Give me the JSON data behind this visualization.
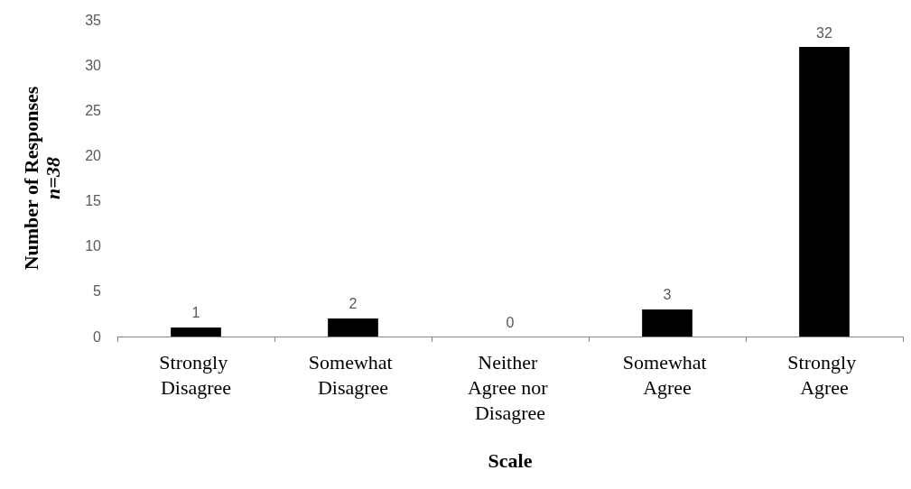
{
  "chart_data": {
    "type": "bar",
    "xlabel": "Scale",
    "ylabel": "Number of Responses\nn=38",
    "categories": [
      "Strongly Disagree",
      "Somewhat Disagree",
      "Neither Agree nor Disagree",
      "Somewhat Agree",
      "Strongly Agree"
    ],
    "values": [
      1,
      2,
      0,
      3,
      32
    ],
    "color": "#000000",
    "ylim": [
      0,
      35
    ],
    "yticks": [
      0,
      5,
      10,
      15,
      20,
      25,
      30,
      35
    ],
    "grid": false,
    "data_labels": true
  }
}
